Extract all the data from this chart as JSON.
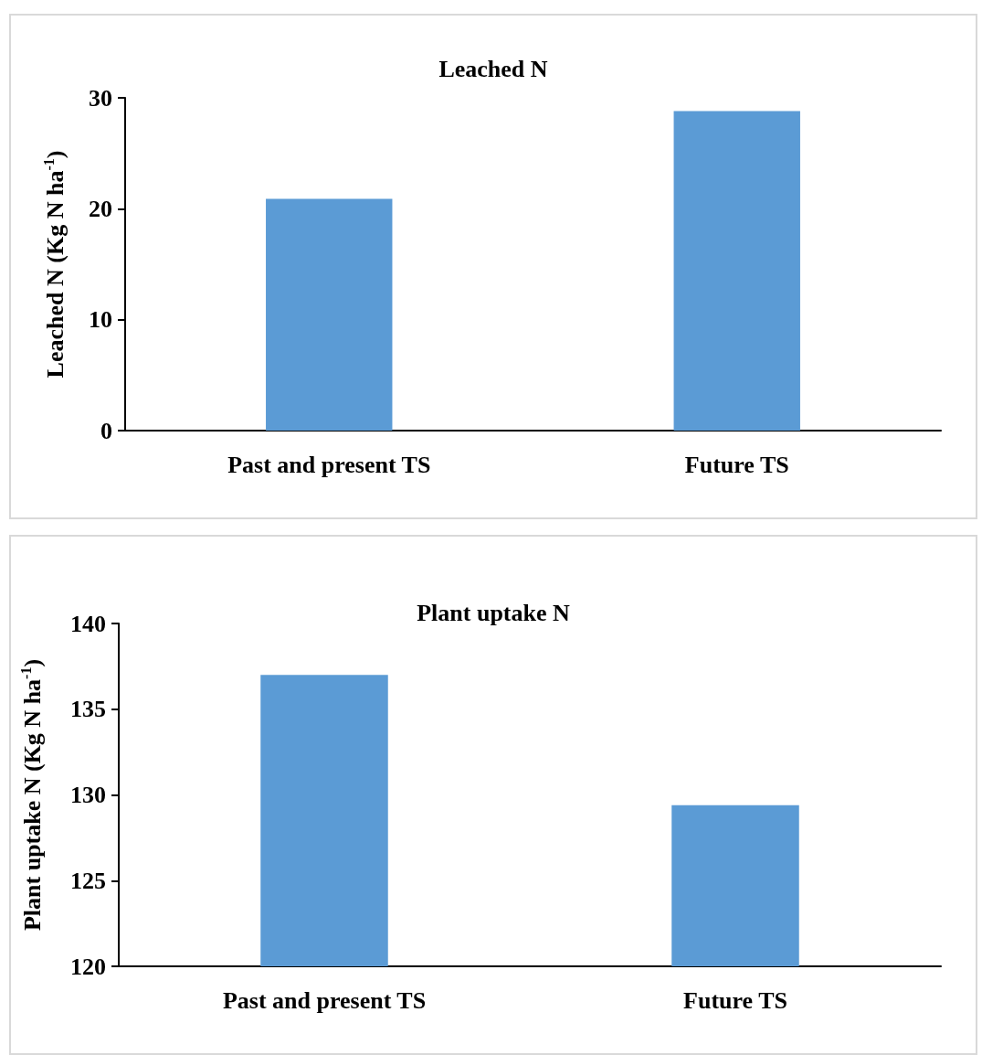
{
  "chart_data": [
    {
      "type": "bar",
      "title": "Leached N",
      "ylabel": "Leached N (Kg N ha$^{-1}$)",
      "categories": [
        "Past and present TS",
        "Future TS"
      ],
      "values": [
        20.9,
        28.8
      ],
      "color": "#5b9bd5",
      "ylim": [
        0,
        30
      ],
      "yticks": [
        0,
        10,
        20,
        30
      ],
      "grid": false
    },
    {
      "type": "bar",
      "title": "Plant uptake N",
      "ylabel": "Plant uptake N (Kg N ha$^{-1}$)",
      "categories": [
        "Past and present TS",
        "Future TS"
      ],
      "values": [
        137.0,
        129.4
      ],
      "color": "#5b9bd5",
      "ylim": [
        120,
        140
      ],
      "yticks": [
        120,
        125,
        130,
        135,
        140
      ],
      "grid": false
    }
  ]
}
